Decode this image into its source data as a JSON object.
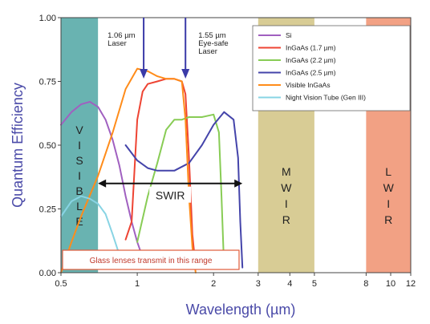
{
  "chart_data": {
    "type": "line",
    "xlabel": "Wavelength (µm)",
    "ylabel": "Quantum Efficiency",
    "xscale": "log",
    "xlim": [
      0.5,
      12
    ],
    "ylim": [
      0,
      1.0
    ],
    "x_ticks": [
      "0.5",
      "1",
      "2",
      "3",
      "4",
      "5",
      "8",
      "10",
      "12"
    ],
    "x_tick_values": [
      0.5,
      1,
      2,
      3,
      4,
      5,
      8,
      10,
      12
    ],
    "y_ticks": [
      "0.00",
      "0.25",
      "0.50",
      "0.75",
      "1.00"
    ],
    "y_tick_values": [
      0,
      0.25,
      0.5,
      0.75,
      1.0
    ],
    "grid": false,
    "legend_position": "top-right",
    "bands": [
      {
        "label": "VISIBLE",
        "letters": [
          "V",
          "I",
          "S",
          "I",
          "B",
          "L",
          "E"
        ],
        "x_range": [
          0.5,
          0.7
        ],
        "color": "#69b3b1"
      },
      {
        "label": "MWIR",
        "letters": [
          "M",
          "W",
          "I",
          "R"
        ],
        "x_range": [
          3,
          5
        ],
        "color": "#d8cc95"
      },
      {
        "label": "LWIR",
        "letters": [
          "L",
          "W",
          "I",
          "R"
        ],
        "x_range": [
          8,
          12
        ],
        "color": "#f2a184"
      }
    ],
    "series": [
      {
        "name": "Si",
        "color": "#a060c0",
        "x": [
          0.5,
          0.55,
          0.6,
          0.65,
          0.7,
          0.75,
          0.8,
          0.85,
          0.9,
          0.95,
          1.0,
          1.05,
          1.1
        ],
        "y": [
          0.58,
          0.63,
          0.66,
          0.67,
          0.65,
          0.6,
          0.52,
          0.42,
          0.3,
          0.2,
          0.12,
          0.06,
          0.02
        ]
      },
      {
        "name": "InGaAs  (1.7 µm)",
        "color": "#ee4433",
        "x": [
          0.9,
          0.95,
          1.0,
          1.05,
          1.1,
          1.2,
          1.3,
          1.4,
          1.5,
          1.55,
          1.6,
          1.65,
          1.7
        ],
        "y": [
          0.13,
          0.2,
          0.6,
          0.71,
          0.74,
          0.75,
          0.76,
          0.76,
          0.75,
          0.7,
          0.45,
          0.15,
          0.02
        ]
      },
      {
        "name": "InGaAs  (2.2 µm)",
        "color": "#88cc55",
        "x": [
          1.0,
          1.1,
          1.2,
          1.3,
          1.4,
          1.5,
          1.6,
          1.8,
          2.0,
          2.1,
          2.15,
          2.2
        ],
        "y": [
          0.12,
          0.3,
          0.43,
          0.56,
          0.6,
          0.6,
          0.61,
          0.61,
          0.62,
          0.55,
          0.3,
          0.02
        ]
      },
      {
        "name": "InGaAs  (2.5 µm)",
        "color": "#4444aa",
        "x": [
          0.9,
          1.0,
          1.1,
          1.2,
          1.4,
          1.6,
          1.8,
          2.0,
          2.2,
          2.4,
          2.5,
          2.55,
          2.6
        ],
        "y": [
          0.5,
          0.44,
          0.41,
          0.4,
          0.4,
          0.43,
          0.5,
          0.58,
          0.63,
          0.6,
          0.45,
          0.2,
          0.02
        ]
      },
      {
        "name": "Visible InGaAs",
        "color": "#ff8c1a",
        "x": [
          0.5,
          0.55,
          0.6,
          0.7,
          0.8,
          0.9,
          1.0,
          1.1,
          1.2,
          1.3,
          1.4,
          1.5,
          1.55,
          1.6,
          1.65,
          1.7
        ],
        "y": [
          0.0,
          0.12,
          0.22,
          0.38,
          0.55,
          0.72,
          0.8,
          0.79,
          0.77,
          0.76,
          0.76,
          0.75,
          0.6,
          0.3,
          0.1,
          0.0
        ]
      },
      {
        "name": "Night Vision Tube (Gen III)",
        "color": "#88d4e4",
        "x": [
          0.5,
          0.55,
          0.6,
          0.65,
          0.7,
          0.75,
          0.8,
          0.85,
          0.9
        ],
        "y": [
          0.22,
          0.28,
          0.3,
          0.29,
          0.27,
          0.23,
          0.15,
          0.07,
          0.02
        ]
      }
    ],
    "annotations": [
      {
        "text_lines": [
          "1.06 µm",
          "Laser"
        ],
        "arrow_x": 1.06
      },
      {
        "text_lines": [
          "1.55 µm",
          "Eye-safe",
          "Laser"
        ],
        "arrow_x": 1.55
      }
    ],
    "swir": {
      "label": "SWIR",
      "x_range": [
        0.7,
        2.6
      ],
      "y": 0.35
    },
    "note": "Glass lenses transmit in this range"
  }
}
